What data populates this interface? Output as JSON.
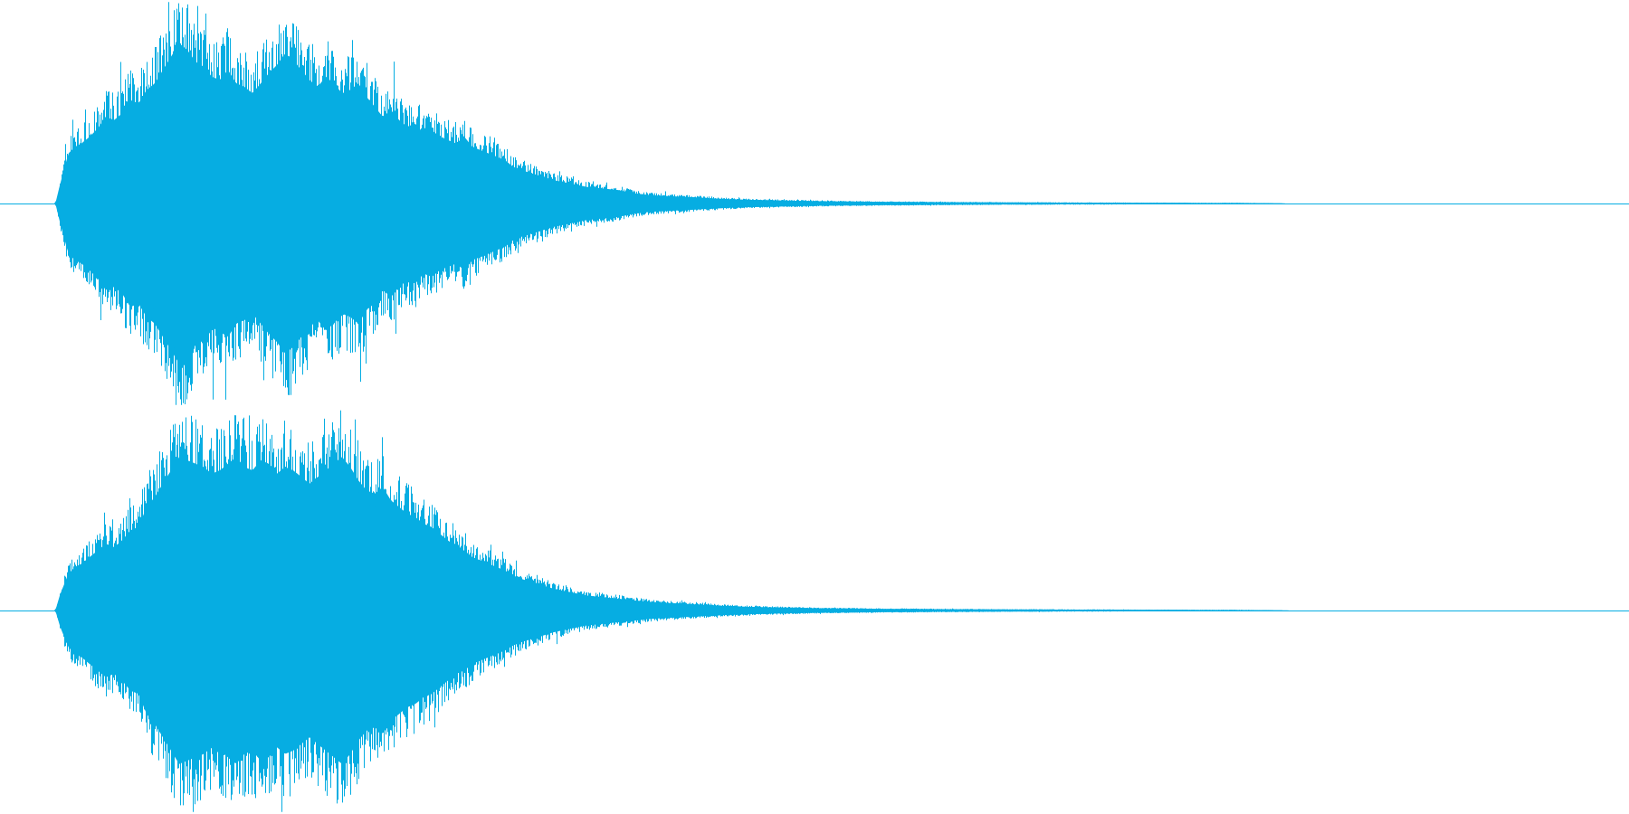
{
  "colors": {
    "waveform": "#06ade2",
    "background": "#ffffff"
  },
  "chart_data": {
    "type": "area",
    "title": "",
    "xlabel": "",
    "ylabel": "",
    "x_range": [
      0,
      1
    ],
    "y_range": [
      -1,
      1
    ],
    "grid": false,
    "legend": "none",
    "channels": [
      {
        "name": "",
        "envelope_x": [
          0.0,
          0.034,
          0.037,
          0.042,
          0.046,
          0.05,
          0.055,
          0.06,
          0.065,
          0.07,
          0.075,
          0.08,
          0.085,
          0.09,
          0.095,
          0.1,
          0.105,
          0.11,
          0.115,
          0.12,
          0.125,
          0.13,
          0.135,
          0.14,
          0.145,
          0.15,
          0.155,
          0.16,
          0.165,
          0.17,
          0.175,
          0.18,
          0.185,
          0.19,
          0.195,
          0.2,
          0.205,
          0.21,
          0.215,
          0.22,
          0.225,
          0.23,
          0.235,
          0.24,
          0.245,
          0.25,
          0.255,
          0.26,
          0.265,
          0.27,
          0.275,
          0.28,
          0.285,
          0.29,
          0.295,
          0.3,
          0.305,
          0.31,
          0.315,
          0.32,
          0.33,
          0.34,
          0.35,
          0.36,
          0.37,
          0.38,
          0.39,
          0.4,
          0.41,
          0.42,
          0.43,
          0.44,
          0.45,
          0.46,
          0.47,
          0.48,
          0.49,
          0.5,
          0.52,
          0.54,
          0.56,
          0.58,
          0.6,
          0.62,
          0.64,
          0.66,
          0.68,
          0.7,
          0.72,
          0.74,
          0.76,
          0.78,
          0.79,
          1.0
        ],
        "envelope_y": [
          0.0,
          0.0,
          0.12,
          0.3,
          0.34,
          0.36,
          0.4,
          0.45,
          0.52,
          0.5,
          0.54,
          0.62,
          0.6,
          0.68,
          0.72,
          0.8,
          0.88,
          0.96,
          0.92,
          0.85,
          0.82,
          0.76,
          0.74,
          0.8,
          0.72,
          0.7,
          0.66,
          0.72,
          0.78,
          0.83,
          0.9,
          0.86,
          0.8,
          0.74,
          0.7,
          0.76,
          0.72,
          0.66,
          0.68,
          0.72,
          0.64,
          0.58,
          0.52,
          0.56,
          0.5,
          0.46,
          0.48,
          0.42,
          0.44,
          0.4,
          0.38,
          0.36,
          0.4,
          0.34,
          0.32,
          0.3,
          0.28,
          0.26,
          0.22,
          0.2,
          0.17,
          0.14,
          0.12,
          0.1,
          0.09,
          0.08,
          0.06,
          0.05,
          0.045,
          0.04,
          0.035,
          0.03,
          0.025,
          0.022,
          0.02,
          0.018,
          0.016,
          0.014,
          0.012,
          0.01,
          0.009,
          0.008,
          0.007,
          0.006,
          0.006,
          0.005,
          0.005,
          0.004,
          0.004,
          0.003,
          0.003,
          0.002,
          0.0,
          0.0
        ]
      },
      {
        "name": "",
        "envelope_x": [
          0.0,
          0.034,
          0.037,
          0.042,
          0.046,
          0.05,
          0.055,
          0.06,
          0.065,
          0.07,
          0.075,
          0.08,
          0.085,
          0.09,
          0.095,
          0.1,
          0.105,
          0.11,
          0.115,
          0.12,
          0.125,
          0.13,
          0.135,
          0.14,
          0.145,
          0.15,
          0.155,
          0.16,
          0.165,
          0.17,
          0.175,
          0.18,
          0.185,
          0.19,
          0.195,
          0.2,
          0.205,
          0.21,
          0.215,
          0.22,
          0.225,
          0.23,
          0.235,
          0.24,
          0.245,
          0.25,
          0.255,
          0.26,
          0.265,
          0.27,
          0.275,
          0.28,
          0.285,
          0.29,
          0.295,
          0.3,
          0.305,
          0.31,
          0.315,
          0.32,
          0.33,
          0.34,
          0.35,
          0.36,
          0.37,
          0.38,
          0.39,
          0.4,
          0.41,
          0.42,
          0.43,
          0.44,
          0.45,
          0.46,
          0.47,
          0.48,
          0.49,
          0.5,
          0.52,
          0.54,
          0.56,
          0.58,
          0.6,
          0.62,
          0.64,
          0.66,
          0.68,
          0.7,
          0.72,
          0.74,
          0.76,
          0.78,
          0.792,
          1.0
        ],
        "envelope_y": [
          0.0,
          0.0,
          0.1,
          0.22,
          0.26,
          0.28,
          0.32,
          0.36,
          0.4,
          0.38,
          0.42,
          0.48,
          0.5,
          0.62,
          0.68,
          0.76,
          0.84,
          0.92,
          0.9,
          0.88,
          0.86,
          0.82,
          0.84,
          0.88,
          0.92,
          0.86,
          0.84,
          0.9,
          0.88,
          0.82,
          0.86,
          0.84,
          0.8,
          0.76,
          0.8,
          0.84,
          0.88,
          0.92,
          0.86,
          0.78,
          0.72,
          0.7,
          0.74,
          0.66,
          0.62,
          0.58,
          0.56,
          0.52,
          0.5,
          0.46,
          0.42,
          0.38,
          0.36,
          0.32,
          0.3,
          0.28,
          0.26,
          0.24,
          0.21,
          0.19,
          0.16,
          0.13,
          0.11,
          0.09,
          0.08,
          0.07,
          0.06,
          0.05,
          0.045,
          0.04,
          0.035,
          0.03,
          0.026,
          0.022,
          0.02,
          0.018,
          0.016,
          0.014,
          0.012,
          0.01,
          0.009,
          0.008,
          0.007,
          0.006,
          0.006,
          0.005,
          0.005,
          0.004,
          0.004,
          0.003,
          0.003,
          0.002,
          0.0,
          0.0
        ]
      }
    ]
  }
}
